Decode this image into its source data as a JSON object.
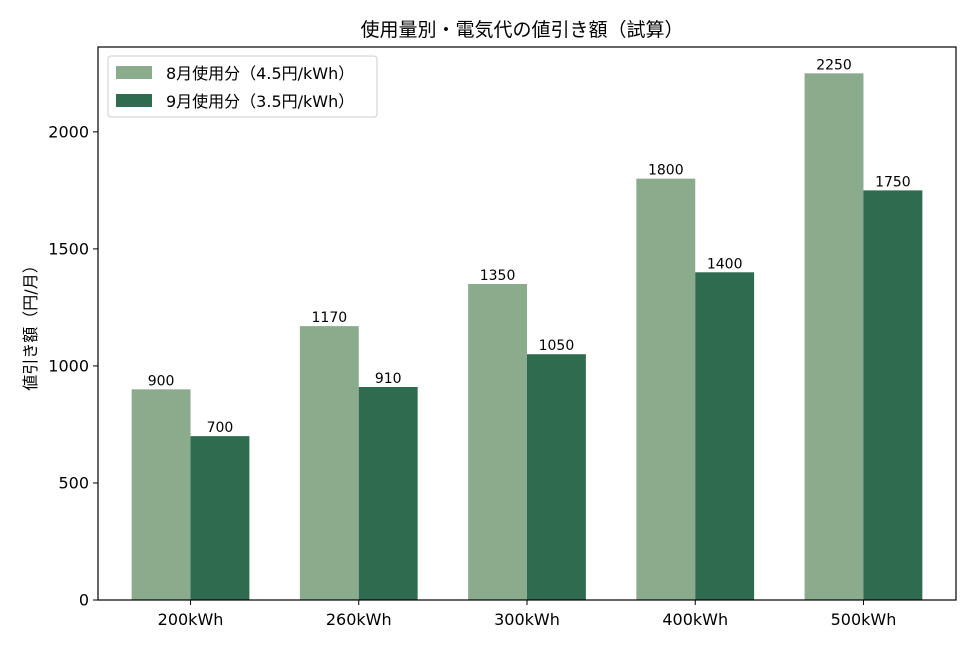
{
  "chart_data": {
    "type": "bar",
    "title": "使用量別・電気代の値引き額（試算）",
    "xlabel": "",
    "ylabel": "値引き額（円/月）",
    "categories": [
      "200kWh",
      "260kWh",
      "300kWh",
      "400kWh",
      "500kWh"
    ],
    "series": [
      {
        "name": "8月使用分（4.5円/kWh）",
        "values": [
          900,
          1170,
          1350,
          1800,
          2250
        ],
        "color": "#8aab8c"
      },
      {
        "name": "9月使用分（3.5円/kWh）",
        "values": [
          700,
          910,
          1050,
          1400,
          1750
        ],
        "color": "#2e6b4f"
      }
    ],
    "ylim": [
      0,
      2362.5
    ],
    "yticks": [
      0,
      500,
      1000,
      1500,
      2000
    ],
    "legend": "top-left",
    "grid": false
  }
}
